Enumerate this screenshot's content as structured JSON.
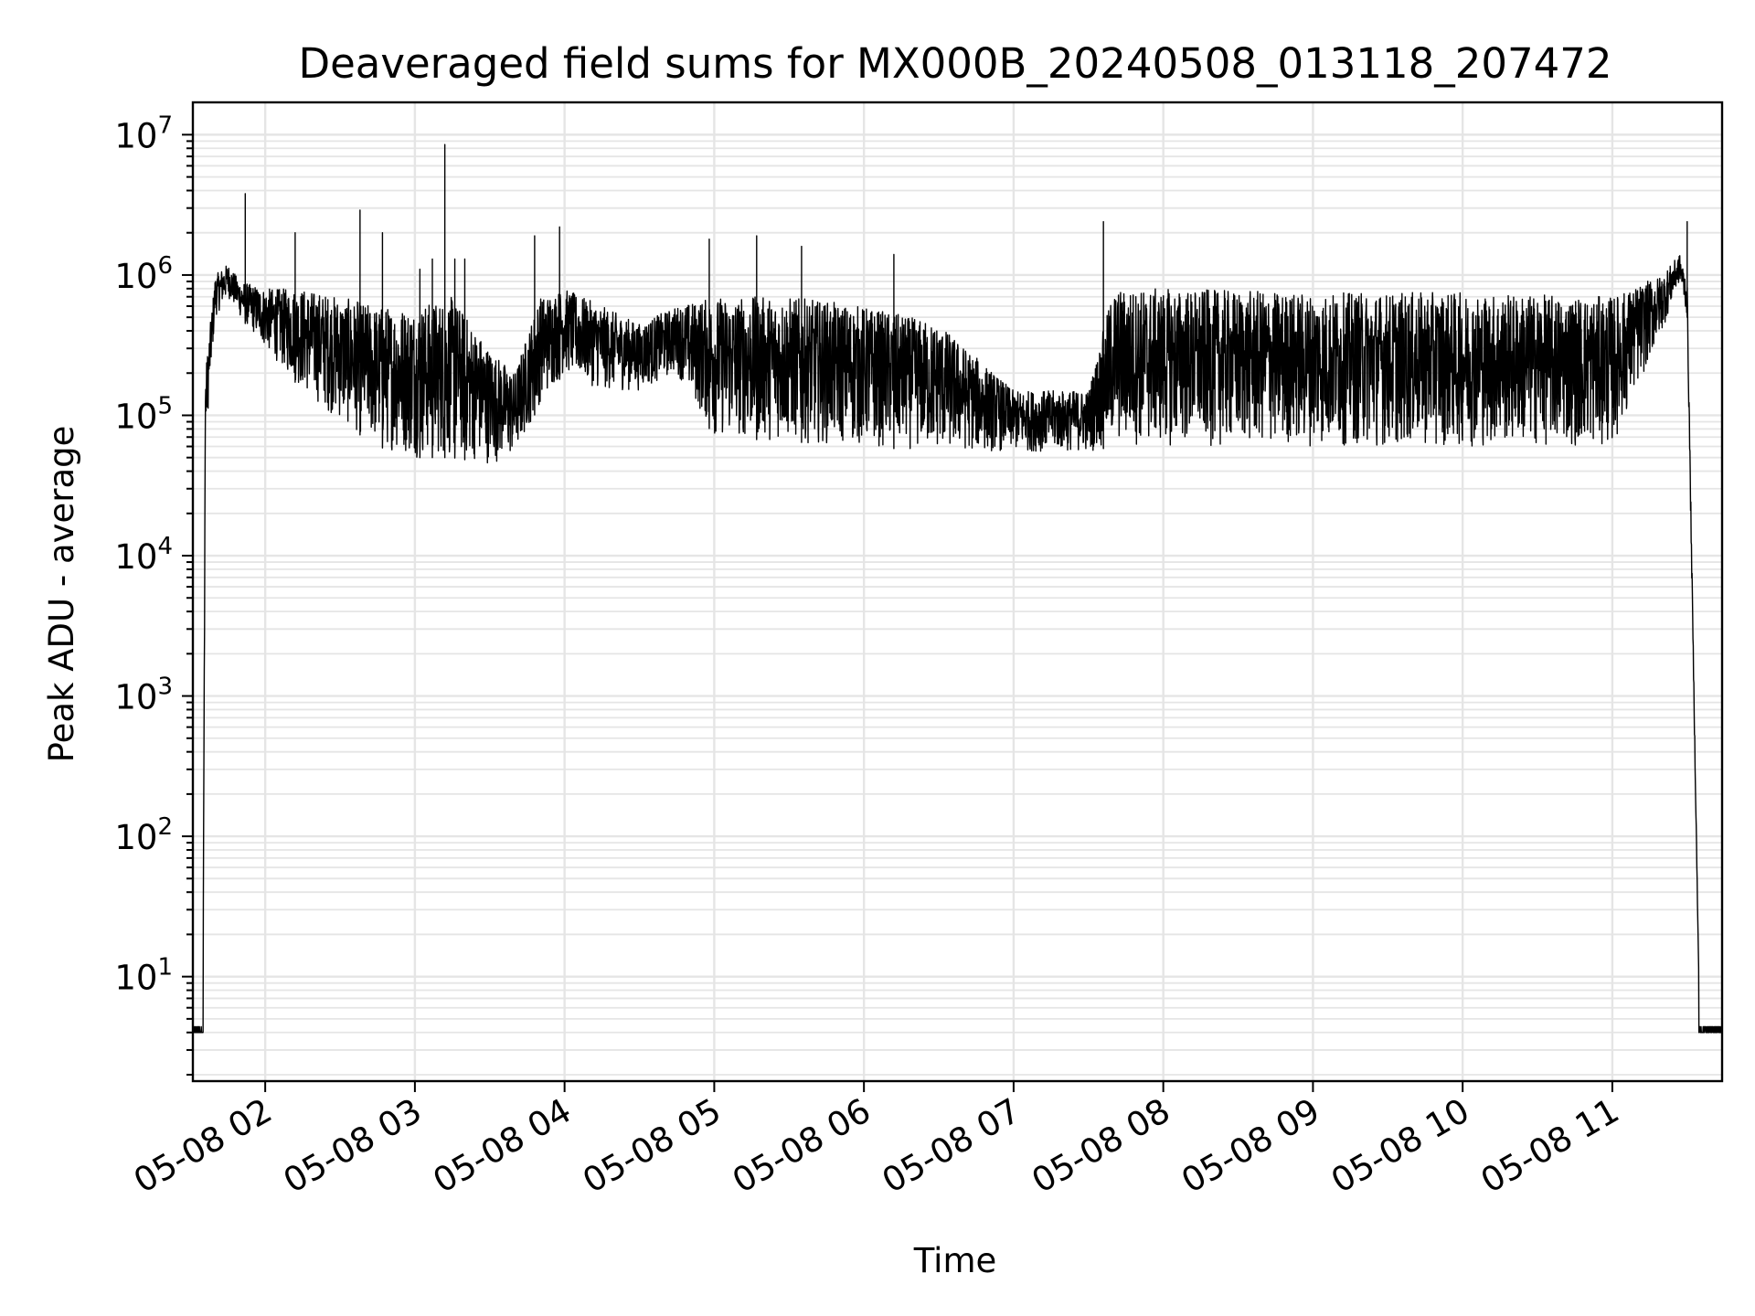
{
  "chart_data": {
    "type": "line",
    "title": "Deaveraged field sums for MX000B_20240508_013118_207472",
    "xlabel": "Time",
    "ylabel": "Peak ADU - average",
    "y_scale": "log",
    "grid": "on (major and minor)",
    "legend": "none",
    "xlim": [
      "2024-05-08 01:31",
      "2024-05-08 11:44"
    ],
    "ylim": [
      1.8,
      17000000
    ],
    "x_ticks": [
      {
        "time": "2024-05-08 02:00",
        "label": "05-08 02"
      },
      {
        "time": "2024-05-08 03:00",
        "label": "05-08 03"
      },
      {
        "time": "2024-05-08 04:00",
        "label": "05-08 04"
      },
      {
        "time": "2024-05-08 05:00",
        "label": "05-08 05"
      },
      {
        "time": "2024-05-08 06:00",
        "label": "05-08 06"
      },
      {
        "time": "2024-05-08 07:00",
        "label": "05-08 07"
      },
      {
        "time": "2024-05-08 08:00",
        "label": "05-08 08"
      },
      {
        "time": "2024-05-08 09:00",
        "label": "05-08 09"
      },
      {
        "time": "2024-05-08 10:00",
        "label": "05-08 10"
      },
      {
        "time": "2024-05-08 11:00",
        "label": "05-08 11"
      }
    ],
    "y_ticks": [
      {
        "value": 10,
        "base": "10",
        "exp": "1"
      },
      {
        "value": 100,
        "base": "10",
        "exp": "2"
      },
      {
        "value": 1000,
        "base": "10",
        "exp": "3"
      },
      {
        "value": 10000,
        "base": "10",
        "exp": "4"
      },
      {
        "value": 100000,
        "base": "10",
        "exp": "5"
      },
      {
        "value": 1000000,
        "base": "10",
        "exp": "6"
      },
      {
        "value": 10000000,
        "base": "10",
        "exp": "7"
      }
    ],
    "series": [
      {
        "color": "#000000",
        "note_points": "approximate envelope read from the figure: [time, lower, upper]",
        "envelope": [
          [
            "2024-05-08 01:31",
            4,
            4.5
          ],
          [
            "2024-05-08 01:35",
            4,
            4.5
          ],
          [
            "2024-05-08 01:36",
            60000,
            200000
          ],
          [
            "2024-05-08 01:40",
            500000,
            1000000
          ],
          [
            "2024-05-08 01:45",
            700000,
            1200000
          ],
          [
            "2024-05-08 01:50",
            500000,
            900000
          ],
          [
            "2024-05-08 02:00",
            300000,
            800000
          ],
          [
            "2024-05-08 02:15",
            150000,
            800000
          ],
          [
            "2024-05-08 02:30",
            90000,
            700000
          ],
          [
            "2024-05-08 02:45",
            60000,
            600000
          ],
          [
            "2024-05-08 03:00",
            50000,
            600000
          ],
          [
            "2024-05-08 03:15",
            50000,
            700000
          ],
          [
            "2024-05-08 03:30",
            45000,
            300000
          ],
          [
            "2024-05-08 03:40",
            50000,
            200000
          ],
          [
            "2024-05-08 03:50",
            120000,
            700000
          ],
          [
            "2024-05-08 04:00",
            200000,
            800000
          ],
          [
            "2024-05-08 04:15",
            150000,
            600000
          ],
          [
            "2024-05-08 04:30",
            150000,
            450000
          ],
          [
            "2024-05-08 04:45",
            200000,
            600000
          ],
          [
            "2024-05-08 05:00",
            70000,
            700000
          ],
          [
            "2024-05-08 05:30",
            65000,
            700000
          ],
          [
            "2024-05-08 06:00",
            60000,
            600000
          ],
          [
            "2024-05-08 06:30",
            55000,
            450000
          ],
          [
            "2024-05-08 07:00",
            55000,
            150000
          ],
          [
            "2024-05-08 07:30",
            55000,
            150000
          ],
          [
            "2024-05-08 07:40",
            60000,
            800000
          ],
          [
            "2024-05-08 08:00",
            60000,
            800000
          ],
          [
            "2024-05-08 09:00",
            60000,
            750000
          ],
          [
            "2024-05-08 10:00",
            60000,
            750000
          ],
          [
            "2024-05-08 11:00",
            60000,
            700000
          ],
          [
            "2024-05-08 11:20",
            400000,
            1000000
          ],
          [
            "2024-05-08 11:27",
            900000,
            1400000
          ],
          [
            "2024-05-08 11:30",
            500000,
            900000
          ],
          [
            "2024-05-08 11:35",
            4,
            4.5
          ],
          [
            "2024-05-08 11:44",
            4,
            4.5
          ]
        ],
        "spikes": [
          [
            "2024-05-08 01:52",
            3800000
          ],
          [
            "2024-05-08 02:12",
            2000000
          ],
          [
            "2024-05-08 02:38",
            2900000
          ],
          [
            "2024-05-08 02:47",
            2000000
          ],
          [
            "2024-05-08 03:02",
            1100000
          ],
          [
            "2024-05-08 03:07",
            1300000
          ],
          [
            "2024-05-08 03:12",
            8500000
          ],
          [
            "2024-05-08 03:16",
            1300000
          ],
          [
            "2024-05-08 03:20",
            1300000
          ],
          [
            "2024-05-08 03:48",
            1900000
          ],
          [
            "2024-05-08 03:58",
            2200000
          ],
          [
            "2024-05-08 04:58",
            1800000
          ],
          [
            "2024-05-08 05:17",
            1900000
          ],
          [
            "2024-05-08 05:35",
            1600000
          ],
          [
            "2024-05-08 06:12",
            1400000
          ],
          [
            "2024-05-08 07:36",
            2400000
          ],
          [
            "2024-05-08 11:30",
            2400000
          ]
        ]
      }
    ]
  }
}
